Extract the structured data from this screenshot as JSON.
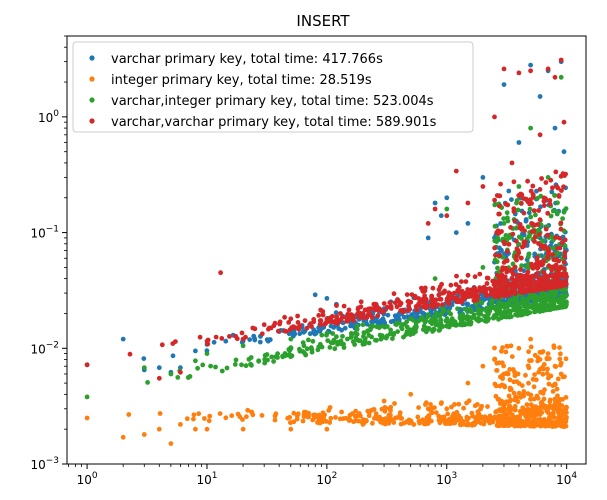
{
  "chart_data": {
    "type": "scatter",
    "title": "INSERT",
    "xlabel": "",
    "ylabel": "",
    "xscale": "log",
    "yscale": "log",
    "xlim": [
      0.68,
      14500
    ],
    "ylim": [
      0.001,
      5
    ],
    "x_ticks": [
      {
        "value": 1,
        "base": "10",
        "exp": "0"
      },
      {
        "value": 10,
        "base": "10",
        "exp": "1"
      },
      {
        "value": 100,
        "base": "10",
        "exp": "2"
      },
      {
        "value": 1000,
        "base": "10",
        "exp": "3"
      },
      {
        "value": 10000,
        "base": "10",
        "exp": "4"
      }
    ],
    "y_ticks": [
      {
        "value": 0.001,
        "base": "10",
        "exp": "−3"
      },
      {
        "value": 0.01,
        "base": "10",
        "exp": "−2"
      },
      {
        "value": 0.1,
        "base": "10",
        "exp": "−1"
      },
      {
        "value": 1,
        "base": "10",
        "exp": "0"
      }
    ],
    "legend_position": "upper-left",
    "series": [
      {
        "name": "varchar primary key, total time: 417.766s",
        "color": "#1f77b4",
        "baseline_start": 0.0065,
        "baseline_end": 0.028,
        "points": [
          [
            1,
            0.0072
          ],
          [
            2,
            0.012
          ],
          [
            3,
            0.0065
          ],
          [
            4,
            0.0068
          ],
          [
            5,
            0.0062
          ],
          [
            6,
            0.0068
          ],
          [
            8,
            0.0095
          ],
          [
            10,
            0.0108
          ],
          [
            20,
            0.0118
          ],
          [
            50,
            0.0138
          ],
          [
            80,
            0.029
          ],
          [
            100,
            0.027
          ],
          [
            120,
            0.024
          ],
          [
            200,
            0.02
          ],
          [
            300,
            0.022
          ],
          [
            500,
            0.025
          ],
          [
            700,
            0.09
          ],
          [
            800,
            0.18
          ],
          [
            900,
            0.14
          ],
          [
            1000,
            0.2
          ],
          [
            1200,
            0.1
          ],
          [
            1500,
            0.12
          ],
          [
            2000,
            0.3
          ],
          [
            2500,
            0.09
          ],
          [
            3000,
            1.9
          ],
          [
            4000,
            0.6
          ],
          [
            5000,
            2.8
          ],
          [
            6000,
            1.5
          ],
          [
            7000,
            2.5
          ],
          [
            8000,
            0.8
          ],
          [
            9000,
            3.0
          ],
          [
            9500,
            0.5
          ]
        ]
      },
      {
        "name": "integer primary key, total time: 28.519s",
        "color": "#ff7f0e",
        "baseline_start": 0.0024,
        "baseline_end": 0.0021,
        "points": [
          [
            1,
            0.0025
          ],
          [
            2,
            0.0017
          ],
          [
            3,
            0.0018
          ],
          [
            4,
            0.002
          ],
          [
            5,
            0.0015
          ],
          [
            6,
            0.0022
          ],
          [
            8,
            0.002
          ],
          [
            10,
            0.002
          ],
          [
            20,
            0.002
          ],
          [
            50,
            0.002
          ],
          [
            100,
            0.002
          ],
          [
            200,
            0.0022
          ],
          [
            300,
            0.0035
          ],
          [
            500,
            0.004
          ],
          [
            700,
            0.003
          ],
          [
            1000,
            0.003
          ],
          [
            1500,
            0.005
          ],
          [
            2000,
            0.007
          ],
          [
            2500,
            0.008
          ],
          [
            3000,
            0.006
          ],
          [
            4000,
            0.01
          ],
          [
            5000,
            0.012
          ],
          [
            6000,
            0.008
          ],
          [
            7000,
            0.009
          ],
          [
            8000,
            0.007
          ],
          [
            9000,
            0.006
          ]
        ]
      },
      {
        "name": "varchar,integer primary key, total time: 523.004s",
        "color": "#2ca02c",
        "baseline_start": 0.0038,
        "baseline_end": 0.023,
        "points": [
          [
            1,
            0.0038
          ],
          [
            3,
            0.0068
          ],
          [
            5,
            0.006
          ],
          [
            8,
            0.0078
          ],
          [
            10,
            0.009
          ],
          [
            20,
            0.0105
          ],
          [
            50,
            0.012
          ],
          [
            100,
            0.0135
          ],
          [
            200,
            0.016
          ],
          [
            500,
            0.018
          ],
          [
            800,
            0.04
          ],
          [
            1000,
            0.16
          ],
          [
            1500,
            0.03
          ],
          [
            2000,
            0.05
          ],
          [
            3000,
            0.12
          ],
          [
            4000,
            0.25
          ],
          [
            5000,
            0.8
          ],
          [
            6000,
            0.1
          ],
          [
            7000,
            0.3
          ],
          [
            8000,
            0.06
          ],
          [
            9000,
            2.2
          ],
          [
            9500,
            0.15
          ]
        ]
      },
      {
        "name": "varchar,varchar primary key, total time: 589.901s",
        "color": "#d62728",
        "baseline_start": 0.0072,
        "baseline_end": 0.035,
        "points": [
          [
            1,
            0.0072
          ],
          [
            4,
            0.0055
          ],
          [
            6,
            0.0062
          ],
          [
            10,
            0.0115
          ],
          [
            13,
            0.045
          ],
          [
            20,
            0.012
          ],
          [
            30,
            0.016
          ],
          [
            50,
            0.018
          ],
          [
            100,
            0.017
          ],
          [
            200,
            0.02
          ],
          [
            300,
            0.021
          ],
          [
            500,
            0.025
          ],
          [
            700,
            0.12
          ],
          [
            800,
            0.16
          ],
          [
            1000,
            0.14
          ],
          [
            1200,
            0.34
          ],
          [
            1500,
            0.18
          ],
          [
            2000,
            0.25
          ],
          [
            2500,
            1.0
          ],
          [
            3000,
            2.6
          ],
          [
            3500,
            0.4
          ],
          [
            4000,
            2.4
          ],
          [
            5000,
            2.5
          ],
          [
            6000,
            0.7
          ],
          [
            7000,
            2.6
          ],
          [
            8000,
            2.2
          ],
          [
            9000,
            3.1
          ],
          [
            9500,
            0.9
          ]
        ]
      }
    ]
  }
}
